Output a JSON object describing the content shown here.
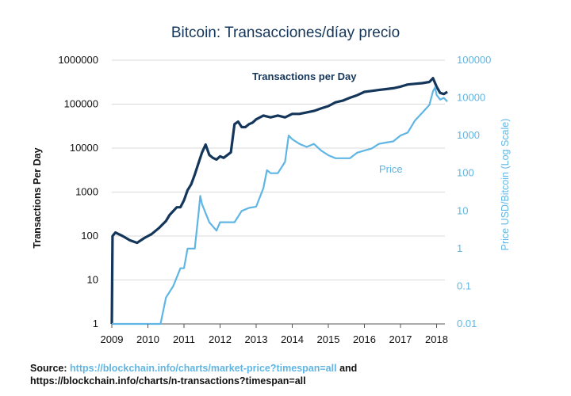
{
  "chart_data": {
    "type": "line",
    "title": "Bitcoin: Transacciones/díay precio",
    "xlabel": "",
    "x_ticks": [
      "2009",
      "2010",
      "2011",
      "2012",
      "2013",
      "2014",
      "2015",
      "2016",
      "2017",
      "2018"
    ],
    "y_left": {
      "label": "Transactions Per Day",
      "scale": "log",
      "range": [
        1,
        1000000
      ],
      "ticks": [
        "1",
        "10",
        "100",
        "1000",
        "10000",
        "100000",
        "1000000"
      ]
    },
    "y_right": {
      "label": "Price USD/Bitcoin (Log Scale)",
      "scale": "log",
      "range": [
        0.01,
        100000
      ],
      "ticks": [
        "0.01",
        "0.1",
        "1",
        "10",
        "100",
        "1000",
        "10000",
        "100000"
      ]
    },
    "grid": "horizontal",
    "series": [
      {
        "name": "Transactions per Day",
        "axis": "left",
        "color": "#14365a",
        "x": [
          2009.0,
          2009.02,
          2009.1,
          2009.3,
          2009.5,
          2009.7,
          2009.9,
          2010.1,
          2010.3,
          2010.5,
          2010.6,
          2010.8,
          2010.9,
          2011.0,
          2011.1,
          2011.2,
          2011.3,
          2011.4,
          2011.5,
          2011.6,
          2011.7,
          2011.8,
          2011.9,
          2012.0,
          2012.1,
          2012.3,
          2012.4,
          2012.5,
          2012.6,
          2012.7,
          2012.8,
          2012.9,
          2013.0,
          2013.2,
          2013.4,
          2013.6,
          2013.8,
          2014.0,
          2014.2,
          2014.4,
          2014.6,
          2014.8,
          2015.0,
          2015.2,
          2015.4,
          2015.6,
          2015.8,
          2016.0,
          2016.2,
          2016.4,
          2016.6,
          2016.8,
          2017.0,
          2017.2,
          2017.4,
          2017.6,
          2017.8,
          2017.9,
          2018.0,
          2018.1,
          2018.2,
          2018.3
        ],
        "values": [
          1,
          100,
          120,
          100,
          80,
          70,
          90,
          110,
          150,
          220,
          300,
          450,
          450,
          650,
          1100,
          1500,
          2500,
          4500,
          8000,
          12000,
          7000,
          6000,
          5500,
          6500,
          6000,
          8000,
          35000,
          40000,
          30000,
          30000,
          35000,
          38000,
          45000,
          55000,
          50000,
          55000,
          50000,
          60000,
          60000,
          65000,
          70000,
          80000,
          90000,
          110000,
          120000,
          140000,
          160000,
          190000,
          200000,
          210000,
          220000,
          230000,
          250000,
          280000,
          290000,
          300000,
          320000,
          390000,
          250000,
          180000,
          170000,
          190000
        ]
      },
      {
        "name": "Price",
        "axis": "right",
        "color": "#5fb6e4",
        "x": [
          2009.0,
          2010.35,
          2010.5,
          2010.7,
          2010.9,
          2011.0,
          2011.1,
          2011.2,
          2011.3,
          2011.4,
          2011.45,
          2011.5,
          2011.7,
          2011.9,
          2012.0,
          2012.2,
          2012.4,
          2012.6,
          2012.8,
          2013.0,
          2013.2,
          2013.3,
          2013.4,
          2013.6,
          2013.8,
          2013.9,
          2014.0,
          2014.2,
          2014.4,
          2014.6,
          2014.8,
          2015.0,
          2015.2,
          2015.4,
          2015.6,
          2015.8,
          2016.0,
          2016.2,
          2016.4,
          2016.6,
          2016.8,
          2017.0,
          2017.2,
          2017.4,
          2017.6,
          2017.8,
          2017.9,
          2017.96,
          2018.0,
          2018.1,
          2018.2,
          2018.3
        ],
        "values": [
          0.01,
          0.01,
          0.05,
          0.1,
          0.3,
          0.3,
          1,
          1,
          1,
          8,
          25,
          15,
          5,
          3,
          5,
          5,
          5,
          10,
          12,
          13,
          40,
          120,
          100,
          100,
          200,
          1000,
          800,
          600,
          500,
          600,
          400,
          300,
          250,
          250,
          250,
          350,
          400,
          450,
          600,
          650,
          700,
          1000,
          1200,
          2500,
          4000,
          6500,
          15000,
          19000,
          12000,
          9000,
          10000,
          8000
        ]
      }
    ]
  },
  "source": {
    "prefix": "Source:",
    "link": "https://blockchain.info/charts/market-price?timespan=all",
    "connector": "and",
    "link2": "https://blockchain.info/charts/n-transactions?timespan=all"
  }
}
